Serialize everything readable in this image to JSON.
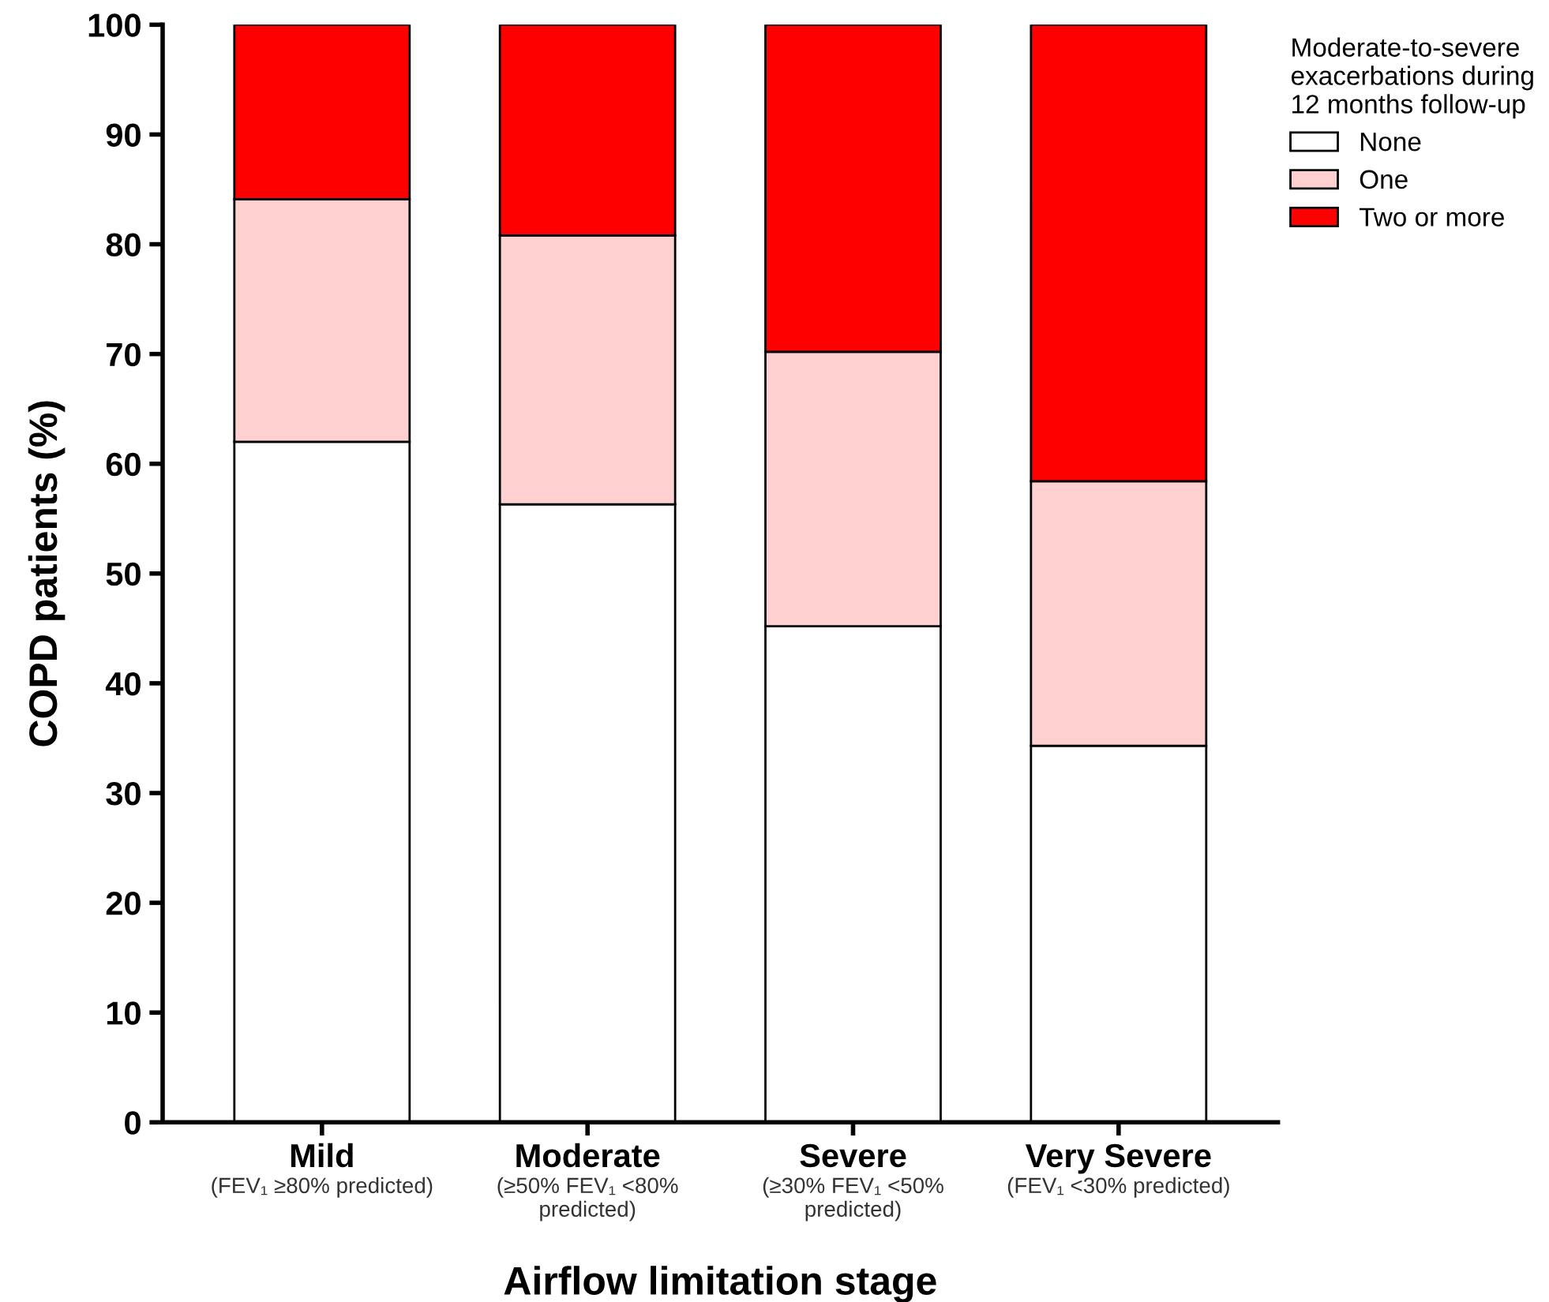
{
  "chart_data": {
    "type": "bar",
    "stacked": true,
    "categories": [
      "Mild\n(FEV₁ ≥80% predicted)",
      "Moderate\n(≥50% FEV₁ <80%\npredicted)",
      "Severe\n(≥30% FEV₁ <50%\npredicted)",
      "Very Severe\n(FEV₁ <30% predicted)"
    ],
    "series": [
      {
        "name": "None",
        "color": "#ffffff",
        "values": [
          62.0,
          56.3,
          45.2,
          34.3
        ]
      },
      {
        "name": "One",
        "color": "#ffd0d0",
        "values": [
          22.1,
          24.5,
          25.0,
          24.1
        ]
      },
      {
        "name": "Two or more",
        "color": "#ff0000",
        "values": [
          15.9,
          19.2,
          29.8,
          41.6
        ]
      }
    ],
    "xlabel": "Airflow limitation stage",
    "ylabel": "COPD patients (%)",
    "legend_title": "Moderate-to-severe\nexacerbations during\n12 months follow-up",
    "legend": "top right",
    "ylim": [
      0,
      100
    ],
    "yticks": [
      0,
      10,
      20,
      30,
      40,
      50,
      60,
      70,
      80,
      90,
      100
    ]
  }
}
